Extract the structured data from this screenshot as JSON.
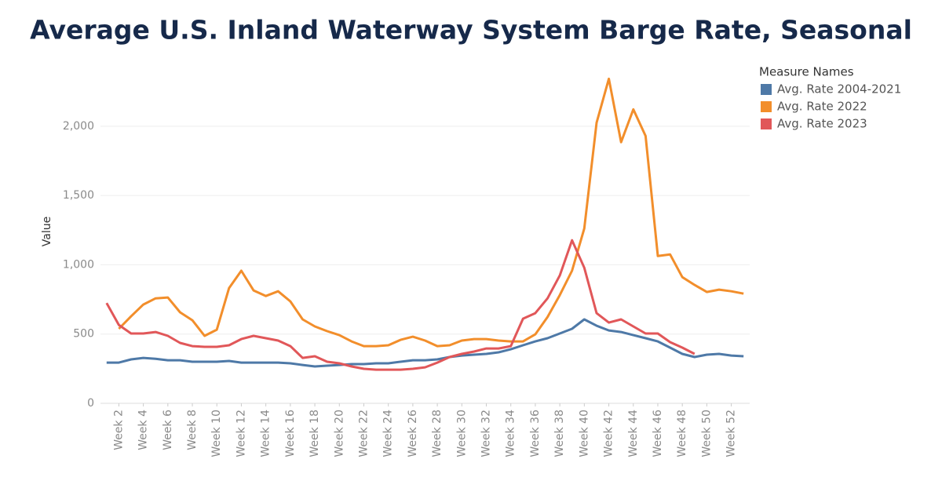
{
  "chart_data": {
    "type": "line",
    "title": "Average U.S. Inland Waterway System Barge Rate, Seasonal",
    "y_label": "Value",
    "legend_title": "Measure Names",
    "legend_position": "right",
    "grid": true,
    "categories": [
      null,
      "Week 2",
      null,
      "Week 4",
      null,
      "Week 6",
      null,
      "Week 8",
      null,
      "Week 10",
      null,
      "Week 12",
      null,
      "Week 14",
      null,
      "Week 16",
      null,
      "Week 18",
      null,
      "Week 20",
      null,
      "Week 22",
      null,
      "Week 24",
      null,
      "Week 26",
      null,
      "Week 28",
      null,
      "Week 30",
      null,
      "Week 32",
      null,
      "Week 34",
      null,
      "Week 36",
      null,
      "Week 38",
      null,
      "Week 40",
      null,
      "Week 42",
      null,
      "Week 44",
      null,
      "Week 46",
      null,
      "Week 48",
      null,
      "Week 50",
      null,
      "Week 52",
      null
    ],
    "ylim": [
      0,
      2430
    ],
    "yticks": [
      0,
      500,
      {
        "value": 1000,
        "label": "1,000"
      },
      {
        "value": 1500,
        "label": "1,500"
      },
      {
        "value": 2000,
        "label": "2,000"
      }
    ],
    "series": [
      {
        "name": "Avg. Rate 2004-2021",
        "color": "#4e79a7",
        "values": [
          294,
          294,
          317,
          328,
          322,
          311,
          311,
          300,
          300,
          300,
          306,
          294,
          294,
          294,
          294,
          289,
          277,
          266,
          272,
          277,
          283,
          283,
          289,
          289,
          300,
          311,
          311,
          317,
          334,
          345,
          351,
          357,
          368,
          390,
          419,
          447,
          470,
          504,
          538,
          606,
          560,
          526,
          515,
          492,
          470,
          447,
          402,
          357,
          334,
          351,
          357,
          345,
          340
        ]
      },
      {
        "name": "Avg. Rate 2022",
        "color": "#f28e2b",
        "values": [
          null,
          538,
          628,
          713,
          758,
          764,
          657,
          600,
          487,
          532,
          832,
          957,
          815,
          775,
          809,
          736,
          606,
          555,
          521,
          492,
          447,
          413,
          413,
          419,
          458,
          481,
          453,
          413,
          419,
          453,
          464,
          464,
          453,
          447,
          447,
          498,
          623,
          781,
          957,
          1262,
          2026,
          2343,
          1885,
          2122,
          1930,
          1064,
          1075,
          911,
          855,
          804,
          821,
          809,
          792
        ]
      },
      {
        "name": "Avg. Rate 2023",
        "color": "#e15759",
        "values": [
          724,
          566,
          504,
          504,
          515,
          487,
          436,
          413,
          408,
          408,
          419,
          464,
          487,
          470,
          453,
          413,
          328,
          340,
          300,
          289,
          266,
          249,
          243,
          243,
          243,
          249,
          260,
          294,
          334,
          357,
          374,
          396,
          396,
          413,
          611,
          651,
          758,
          923,
          1177,
          979,
          651,
          583,
          606,
          555,
          504,
          504,
          442,
          402,
          357,
          null,
          null,
          null,
          null
        ]
      }
    ]
  }
}
